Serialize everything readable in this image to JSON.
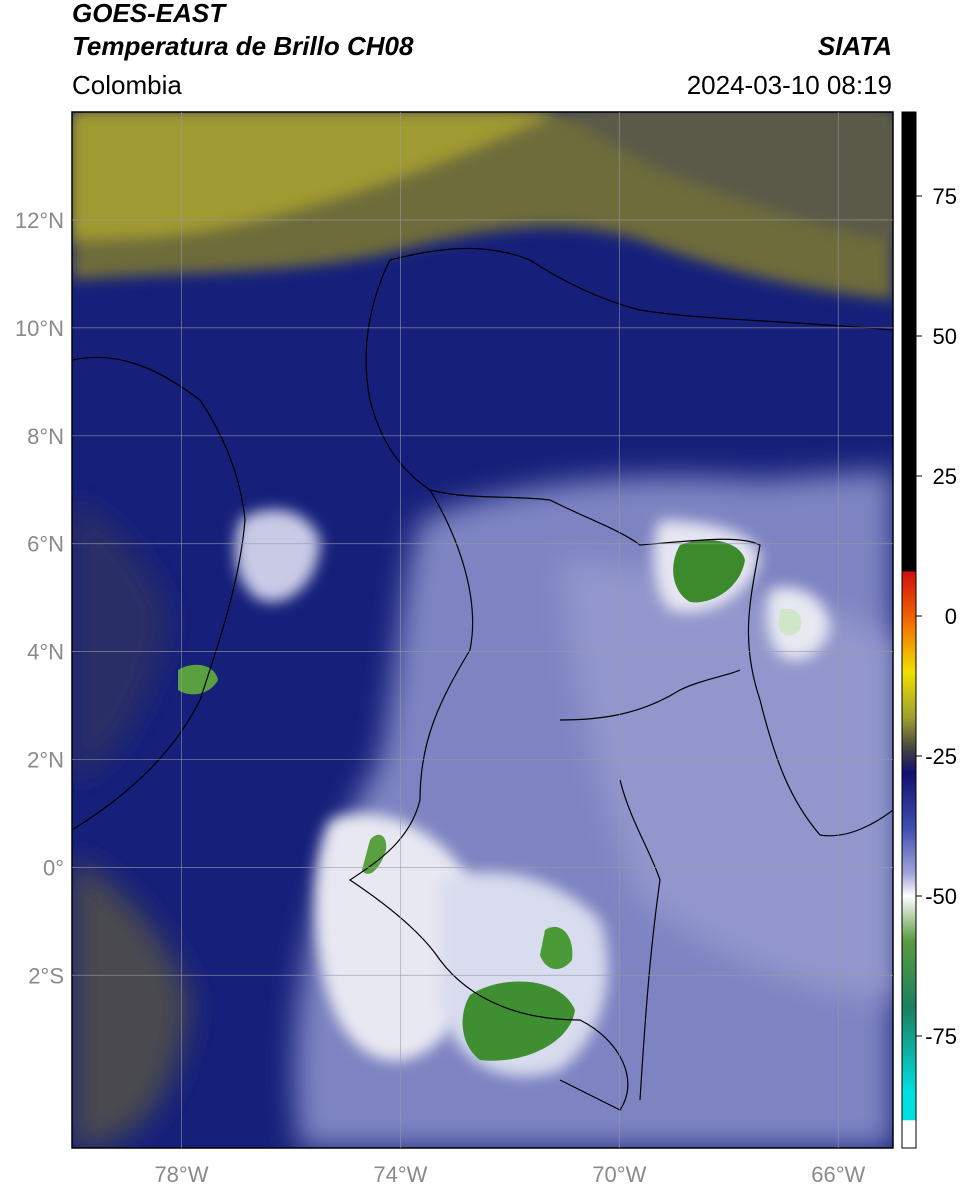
{
  "header": {
    "satellite": "GOES-EAST",
    "product": "Temperatura de Brillo CH08",
    "region": "Colombia",
    "organization": "SIATA",
    "timestamp": "2024-03-10 08:19"
  },
  "map": {
    "lon_range": [
      -80,
      -65
    ],
    "lat_range": [
      -5.2,
      14
    ],
    "lon_ticks": [
      {
        "value": -78,
        "label": "78°W"
      },
      {
        "value": -74,
        "label": "74°W"
      },
      {
        "value": -70,
        "label": "70°W"
      },
      {
        "value": -66,
        "label": "66°W"
      }
    ],
    "lat_ticks": [
      {
        "value": 12,
        "label": "12°N"
      },
      {
        "value": 10,
        "label": "10°N"
      },
      {
        "value": 8,
        "label": "8°N"
      },
      {
        "value": 6,
        "label": "6°N"
      },
      {
        "value": 4,
        "label": "4°N"
      },
      {
        "value": 2,
        "label": "2°N"
      },
      {
        "value": 0,
        "label": "0°"
      },
      {
        "value": -2,
        "label": "2°S"
      }
    ],
    "colors": {
      "ocean_warm": "#4a4a44",
      "olive": "#8c8c2a",
      "navy": "#10186e",
      "blue": "#3a4aa4",
      "lavender": "#8c90c8",
      "white": "#f0f0f4",
      "green": "#3c8a2c"
    }
  },
  "colorbar": {
    "ticks": [
      {
        "value": 75,
        "label": "75"
      },
      {
        "value": 50,
        "label": "50"
      },
      {
        "value": 25,
        "label": "25"
      },
      {
        "value": 0,
        "label": "0"
      },
      {
        "value": -25,
        "label": "-25"
      },
      {
        "value": -50,
        "label": "-50"
      },
      {
        "value": -75,
        "label": "-75"
      }
    ],
    "range": [
      -95,
      90
    ],
    "stops": [
      {
        "value": 90,
        "color": "#000000"
      },
      {
        "value": 8,
        "color": "#000000"
      },
      {
        "value": 7.9,
        "color": "#d01010"
      },
      {
        "value": 0,
        "color": "#f06000"
      },
      {
        "value": -10,
        "color": "#f0e000"
      },
      {
        "value": -18,
        "color": "#a0a030"
      },
      {
        "value": -24,
        "color": "#404040"
      },
      {
        "value": -28,
        "color": "#101070"
      },
      {
        "value": -38,
        "color": "#4050b0"
      },
      {
        "value": -46,
        "color": "#a0a4d8"
      },
      {
        "value": -50,
        "color": "#ffffff"
      },
      {
        "value": -58,
        "color": "#5a9a40"
      },
      {
        "value": -70,
        "color": "#1a8060"
      },
      {
        "value": -85,
        "color": "#00e0e0"
      },
      {
        "value": -90,
        "color": "#00e0e0"
      },
      {
        "value": -90.1,
        "color": "#ffffff"
      },
      {
        "value": -95,
        "color": "#ffffff"
      }
    ]
  }
}
